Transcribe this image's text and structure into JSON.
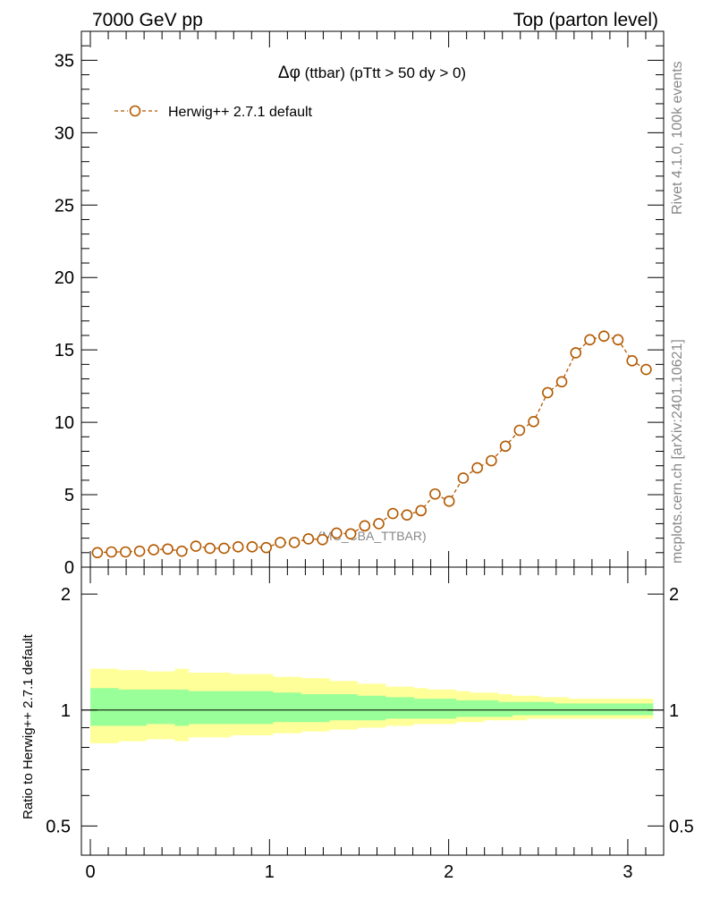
{
  "header": {
    "left": "7000 GeV pp",
    "right": "Top (parton level)"
  },
  "side_labels": {
    "rivet": "Rivet 4.1.0,  100k events",
    "mcplots": "mcplots.cern.ch [arXiv:2401.10621]"
  },
  "chart_data": [
    {
      "type": "line",
      "title": "Δφ (ttbar) (pTtt > 50 dy > 0)",
      "title_symbol": "Δφ",
      "title_rest": " (ttbar) (pTtt > 50 dy > 0)",
      "watermark": "(MC_CBA_TTBAR)",
      "xlabel": "",
      "ylabel": "",
      "xlim": [
        -0.05,
        3.2
      ],
      "ylim": [
        0,
        37
      ],
      "yticks": [
        0,
        5,
        10,
        15,
        20,
        25,
        30,
        35
      ],
      "ytick_labels": [
        "0",
        "5",
        "10",
        "15",
        "20",
        "25",
        "30",
        "35"
      ],
      "series": [
        {
          "name": "Herwig++ 2.7.1 default",
          "color": "#b35900",
          "x": [
            0.0393,
            0.1178,
            0.1963,
            0.2749,
            0.3534,
            0.432,
            0.5105,
            0.589,
            0.6676,
            0.7461,
            0.8247,
            0.9032,
            0.9817,
            1.0603,
            1.1388,
            1.2174,
            1.2959,
            1.3744,
            1.453,
            1.5315,
            1.6101,
            1.6886,
            1.7671,
            1.8457,
            1.9242,
            2.0028,
            2.0813,
            2.1598,
            2.2384,
            2.3169,
            2.3955,
            2.474,
            2.5525,
            2.6311,
            2.7096,
            2.7882,
            2.8667,
            2.9452,
            3.0238,
            3.1023
          ],
          "values": [
            1.0,
            1.05,
            1.05,
            1.1,
            1.2,
            1.25,
            1.1,
            1.45,
            1.3,
            1.3,
            1.4,
            1.4,
            1.35,
            1.7,
            1.7,
            1.95,
            1.9,
            2.35,
            2.3,
            2.85,
            3.0,
            3.7,
            3.6,
            3.9,
            5.05,
            4.55,
            6.15,
            6.85,
            7.35,
            8.35,
            9.45,
            10.05,
            12.05,
            12.8,
            14.8,
            15.7,
            15.95,
            15.7,
            14.25,
            13.65
          ],
          "errors": [
            0.12,
            0.12,
            0.12,
            0.12,
            0.13,
            0.13,
            0.13,
            0.14,
            0.14,
            0.14,
            0.14,
            0.14,
            0.14,
            0.15,
            0.15,
            0.16,
            0.16,
            0.17,
            0.17,
            0.18,
            0.19,
            0.2,
            0.2,
            0.21,
            0.23,
            0.22,
            0.25,
            0.26,
            0.27,
            0.29,
            0.3,
            0.31,
            0.34,
            0.35,
            0.38,
            0.39,
            0.4,
            0.39,
            0.37,
            0.36
          ]
        }
      ],
      "legend_position": "top-left"
    },
    {
      "type": "area",
      "ylabel": "Ratio to Herwig++ 2.7.1 default",
      "xlim": [
        -0.05,
        3.2
      ],
      "ylim": [
        0.42,
        2.35
      ],
      "yscale": "log",
      "yticks": [
        0.5,
        1,
        2
      ],
      "ytick_labels": [
        "0.5",
        "1",
        "2"
      ],
      "xticks": [
        0,
        1,
        2,
        3
      ],
      "xtick_labels": [
        "0",
        "1",
        "2",
        "3"
      ],
      "reference_line": 1,
      "bands": [
        {
          "name": "outer-uncertainty",
          "color": "#ffff99",
          "upper": [
            1.28,
            1.28,
            1.27,
            1.27,
            1.26,
            1.26,
            1.28,
            1.25,
            1.25,
            1.25,
            1.24,
            1.24,
            1.24,
            1.22,
            1.22,
            1.21,
            1.21,
            1.19,
            1.19,
            1.17,
            1.17,
            1.15,
            1.15,
            1.14,
            1.13,
            1.13,
            1.12,
            1.11,
            1.11,
            1.1,
            1.09,
            1.09,
            1.08,
            1.08,
            1.07,
            1.07,
            1.07,
            1.07,
            1.07,
            1.07
          ],
          "lower": [
            0.82,
            0.82,
            0.83,
            0.83,
            0.84,
            0.84,
            0.83,
            0.85,
            0.85,
            0.85,
            0.86,
            0.86,
            0.86,
            0.87,
            0.87,
            0.88,
            0.88,
            0.89,
            0.89,
            0.9,
            0.9,
            0.91,
            0.91,
            0.92,
            0.92,
            0.92,
            0.93,
            0.93,
            0.94,
            0.94,
            0.94,
            0.95,
            0.95,
            0.95,
            0.95,
            0.95,
            0.95,
            0.95,
            0.95,
            0.95
          ]
        },
        {
          "name": "inner-uncertainty",
          "color": "#99ff99",
          "upper": [
            1.14,
            1.14,
            1.13,
            1.13,
            1.13,
            1.13,
            1.13,
            1.12,
            1.12,
            1.12,
            1.12,
            1.12,
            1.12,
            1.11,
            1.11,
            1.1,
            1.1,
            1.1,
            1.1,
            1.09,
            1.09,
            1.08,
            1.08,
            1.07,
            1.07,
            1.07,
            1.06,
            1.06,
            1.06,
            1.05,
            1.05,
            1.05,
            1.05,
            1.04,
            1.04,
            1.04,
            1.04,
            1.04,
            1.04,
            1.04
          ],
          "lower": [
            0.91,
            0.91,
            0.91,
            0.91,
            0.92,
            0.92,
            0.91,
            0.92,
            0.92,
            0.92,
            0.92,
            0.92,
            0.92,
            0.93,
            0.93,
            0.93,
            0.93,
            0.94,
            0.94,
            0.94,
            0.94,
            0.95,
            0.95,
            0.95,
            0.95,
            0.95,
            0.96,
            0.96,
            0.96,
            0.96,
            0.97,
            0.97,
            0.97,
            0.97,
            0.97,
            0.97,
            0.97,
            0.97,
            0.97,
            0.97
          ]
        }
      ]
    }
  ]
}
